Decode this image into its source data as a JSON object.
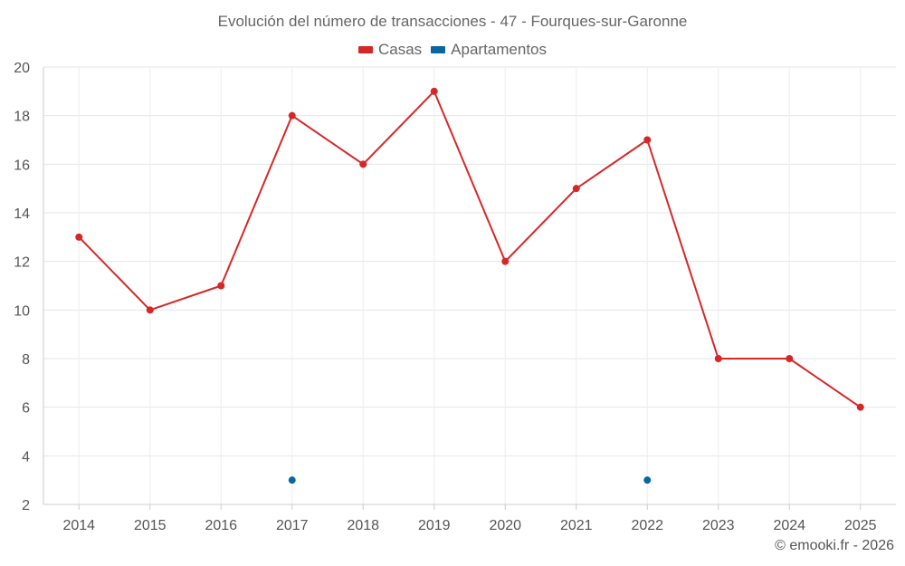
{
  "chart_data": {
    "type": "line",
    "title": "Evolución del número de transacciones - 47 - Fourques-sur-Garonne",
    "xlabel": "",
    "ylabel": "",
    "categories": [
      "2014",
      "2015",
      "2016",
      "2017",
      "2018",
      "2019",
      "2020",
      "2021",
      "2022",
      "2023",
      "2024",
      "2025"
    ],
    "ylim": [
      2,
      20
    ],
    "yticks": [
      2,
      4,
      6,
      8,
      10,
      12,
      14,
      16,
      18,
      20
    ],
    "grid": true,
    "legend_position": "top-center",
    "series": [
      {
        "name": "Casas",
        "color": "#d62728",
        "values": [
          13,
          10,
          11,
          18,
          16,
          19,
          12,
          15,
          17,
          8,
          8,
          6
        ]
      },
      {
        "name": "Apartamentos",
        "color": "#0a66a0",
        "values": [
          null,
          null,
          null,
          3,
          null,
          null,
          null,
          null,
          3,
          null,
          null,
          null
        ]
      }
    ]
  },
  "credit": "© emooki.fr - 2026"
}
